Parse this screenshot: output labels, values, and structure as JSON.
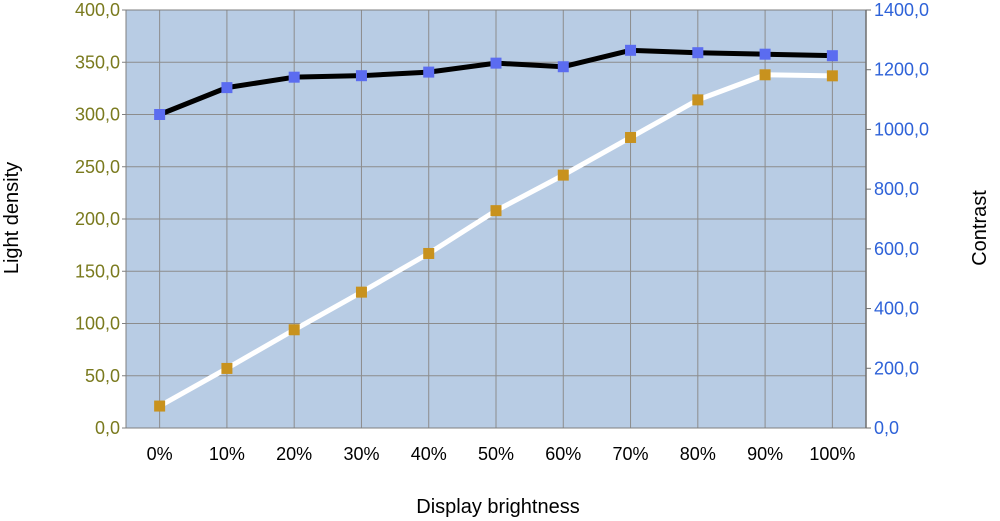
{
  "chart_data": {
    "type": "line",
    "categories": [
      "0%",
      "10%",
      "20%",
      "30%",
      "40%",
      "50%",
      "60%",
      "70%",
      "80%",
      "90%",
      "100%"
    ],
    "xlabel": "Display brightness",
    "ylabel_left": "Light density",
    "ylabel_right": "Contrast",
    "ylim_left": [
      0,
      400
    ],
    "ylim_right": [
      0,
      1400
    ],
    "yticks_left": [
      "0,0",
      "50,0",
      "100,0",
      "150,0",
      "200,0",
      "250,0",
      "300,0",
      "350,0",
      "400,0"
    ],
    "yticks_right": [
      "0,0",
      "200,0",
      "400,0",
      "600,0",
      "800,0",
      "1000,0",
      "1200,0",
      "1400,0"
    ],
    "grid": true,
    "series": [
      {
        "axis": "left",
        "line_color": "#ffffff",
        "marker_color": "#c8921e",
        "values": [
          21,
          57,
          94,
          130,
          167,
          208,
          242,
          278,
          314,
          338,
          337
        ]
      },
      {
        "axis": "right",
        "line_color": "#000000",
        "marker_color": "#5b6cf0",
        "values": [
          1050,
          1140,
          1175,
          1180,
          1192,
          1222,
          1210,
          1265,
          1257,
          1252,
          1247
        ]
      }
    ],
    "colors": {
      "plot_background": "#b8cce4",
      "grid": "#8c8c8c",
      "left_tick_color": "#7a7a1e",
      "right_tick_color": "#2e62d8"
    }
  }
}
